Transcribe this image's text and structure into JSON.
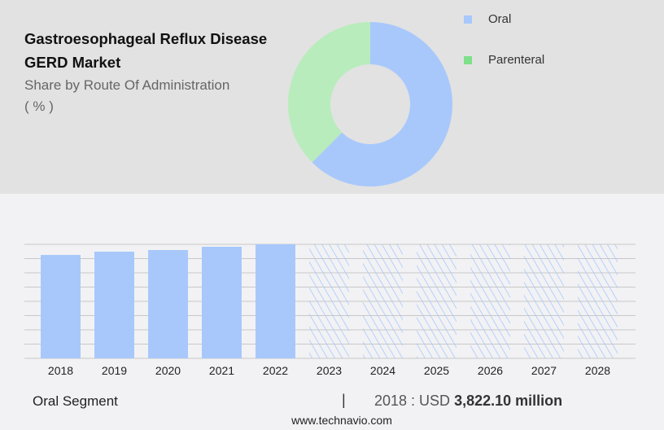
{
  "title": "Gastroesophageal Reflux Disease GERD Market",
  "subtitle": "Share by Route Of Administration",
  "unit": "( % )",
  "colors": {
    "oral": "#a8c8fc",
    "parenteral": "#b8ecbc",
    "parenteral_legend": "#7ee08a",
    "grid": "#c8c8c8"
  },
  "footer": {
    "segment": "Oral Segment",
    "separator": "|",
    "year_label": "2018 : USD",
    "value": "3,822.10 million",
    "site": "www.technavio.com"
  },
  "chart_data": [
    {
      "type": "pie",
      "donut": true,
      "legend_position": "top-right",
      "slices": [
        {
          "name": "Oral",
          "value": 62.5
        },
        {
          "name": "Parenteral",
          "value": 37.5
        }
      ]
    },
    {
      "type": "bar",
      "categories": [
        "2018",
        "2019",
        "2020",
        "2021",
        "2022",
        "2023",
        "2024",
        "2025",
        "2026",
        "2027",
        "2028"
      ],
      "values": [
        3822.1,
        3943,
        4003,
        4124,
        4214,
        null,
        null,
        null,
        null,
        null,
        null
      ],
      "forecast_from": "2023",
      "ylim": [
        0,
        4214
      ],
      "grid": true,
      "unit": "USD million"
    }
  ]
}
